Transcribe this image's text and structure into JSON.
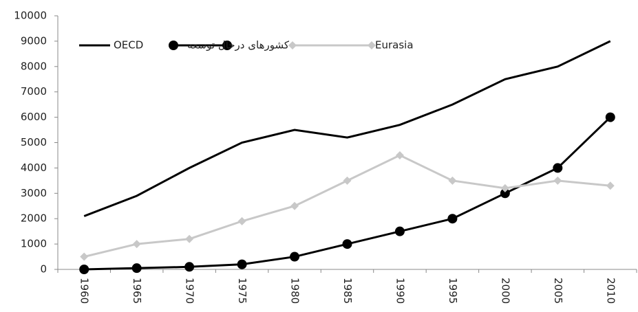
{
  "chart_data": {
    "type": "line",
    "categories": [
      "1960",
      "1965",
      "1970",
      "1975",
      "1980",
      "1985",
      "1990",
      "1995",
      "2000",
      "2005",
      "2010"
    ],
    "series": [
      {
        "name": "OECD",
        "color": "#000000",
        "marker": "none",
        "values": [
          2100,
          2900,
          4000,
          5000,
          5500,
          5200,
          5700,
          6500,
          7500,
          8000,
          9000
        ]
      },
      {
        "name": "کشورهای درحال توسعه",
        "color": "#000000",
        "marker": "circle",
        "values": [
          0,
          50,
          100,
          200,
          500,
          1000,
          1500,
          2000,
          3000,
          4000,
          6000
        ]
      },
      {
        "name": "Eurasia",
        "color": "#c8c8c8",
        "marker": "diamond",
        "values": [
          500,
          1000,
          1200,
          1900,
          2500,
          3500,
          4500,
          3500,
          3200,
          3500,
          3300
        ]
      }
    ],
    "ylim": [
      0,
      10000
    ],
    "yticks": [
      0,
      1000,
      2000,
      3000,
      4000,
      5000,
      6000,
      7000,
      8000,
      9000,
      10000
    ],
    "legend": "top-left",
    "grid": false
  }
}
